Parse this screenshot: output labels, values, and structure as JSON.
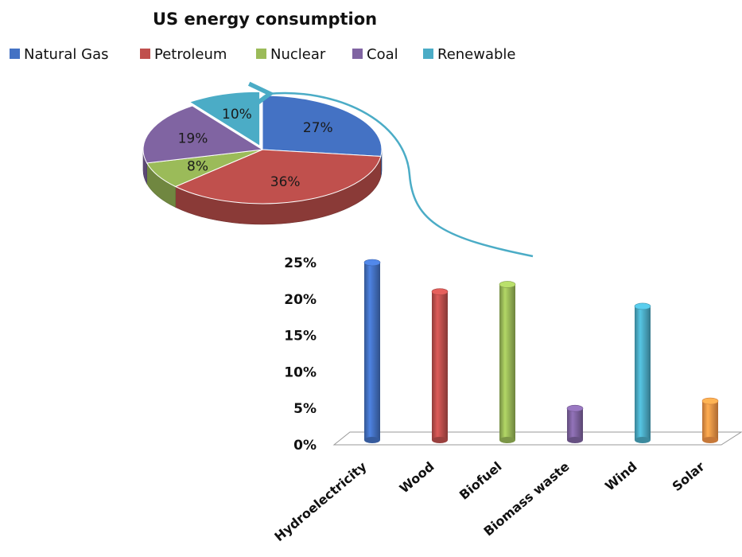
{
  "title": "US energy consumption",
  "chart_data": [
    {
      "type": "pie",
      "title": "US energy consumption",
      "categories": [
        "Natural Gas",
        "Petroleum",
        "Nuclear",
        "Coal",
        "Renewable"
      ],
      "values": [
        27,
        36,
        8,
        19,
        10
      ],
      "labels": [
        "27%",
        "36%",
        "8%",
        "19%",
        "10%"
      ],
      "colors": [
        "#4472c4",
        "#c0504d",
        "#9bbb59",
        "#8064a2",
        "#4bacc6"
      ],
      "exploded": "Renewable",
      "legend_position": "top"
    },
    {
      "type": "bar",
      "categories": [
        "Hydroelectricity",
        "Wood",
        "Biofuel",
        "Biomass waste",
        "Wind",
        "Solar"
      ],
      "values": [
        25,
        21,
        22,
        5,
        19,
        6
      ],
      "colors": [
        "#4472c4",
        "#c0504d",
        "#9bbb59",
        "#8064a2",
        "#4bacc6",
        "#f79646"
      ],
      "ylim": [
        0,
        25
      ],
      "yticks": [
        "0%",
        "5%",
        "10%",
        "15%",
        "20%",
        "25%"
      ],
      "ytick_values": [
        0,
        5,
        10,
        15,
        20,
        25
      ],
      "grid": false
    }
  ]
}
